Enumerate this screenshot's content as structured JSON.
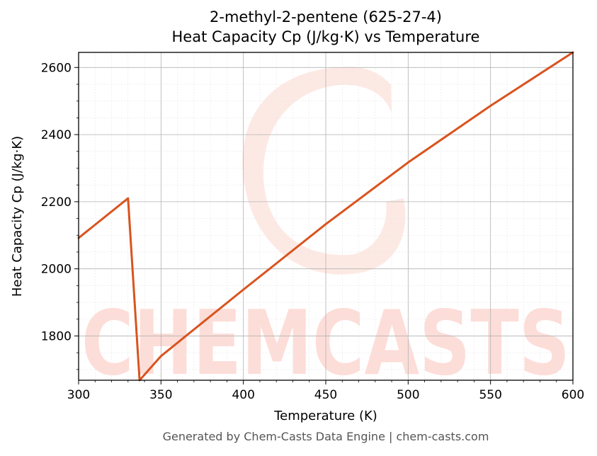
{
  "chart_data": {
    "type": "line",
    "title_line1": "2-methyl-2-pentene (625-27-4)",
    "title_line2": "Heat Capacity Cp (J/kg·K) vs Temperature",
    "xlabel": "Temperature (K)",
    "ylabel": "Heat Capacity Cp (J/kg·K)",
    "xlim": [
      300,
      600
    ],
    "ylim": [
      1668,
      2645
    ],
    "xticks": [
      300,
      350,
      400,
      450,
      500,
      550,
      600
    ],
    "yticks": [
      1800,
      2000,
      2200,
      2400,
      2600
    ],
    "grid": true,
    "line_color": "#d9531e",
    "series": [
      {
        "x": [
          300,
          330,
          337,
          350,
          400,
          450,
          500,
          550,
          600
        ],
        "y": [
          2092,
          2210,
          1668,
          1740,
          1938,
          2133,
          2317,
          2486,
          2645
        ]
      }
    ]
  },
  "watermark": {
    "text": "CHEMCASTS",
    "color": "#fdd5cf"
  },
  "footer": "Generated by Chem-Casts Data Engine | chem-casts.com"
}
